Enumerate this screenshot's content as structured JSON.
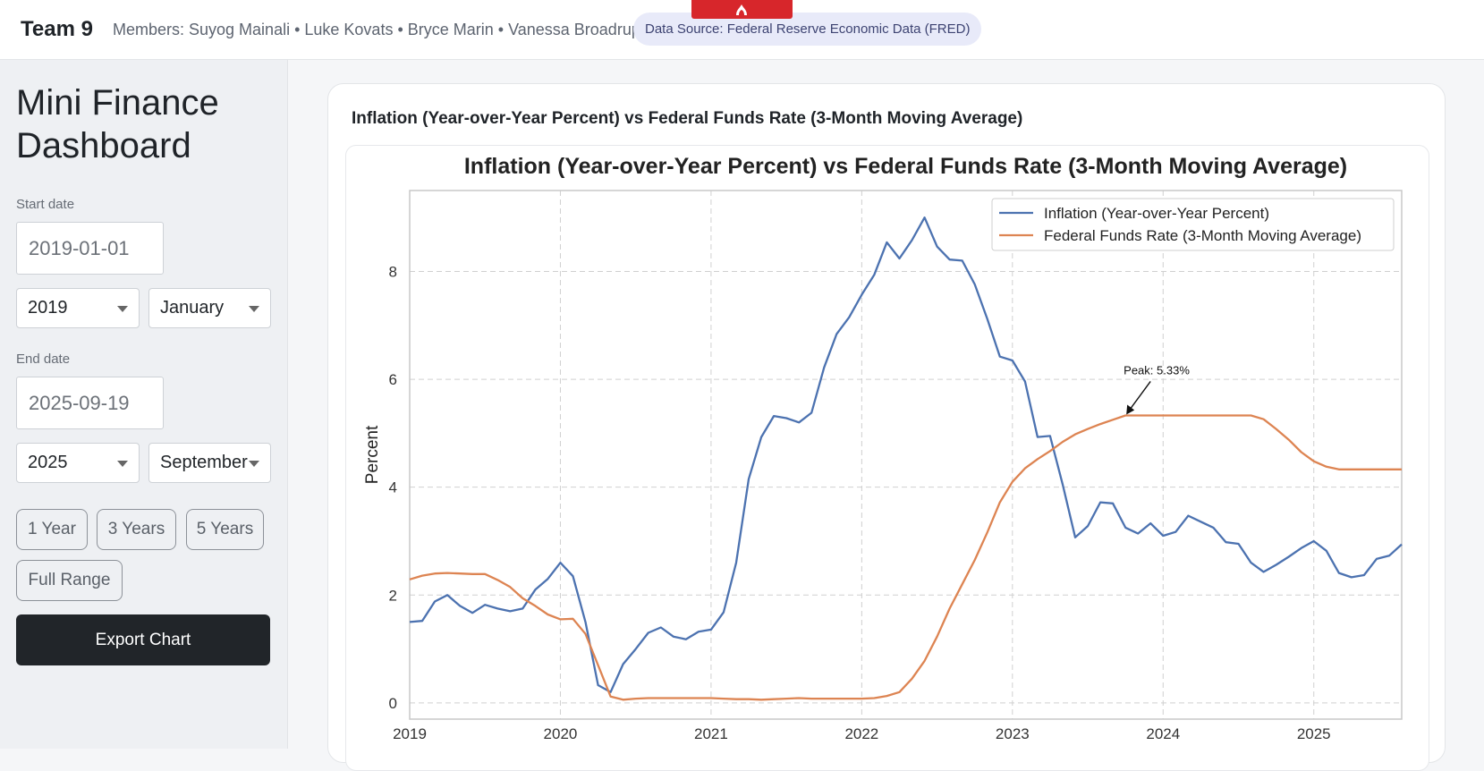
{
  "header": {
    "team": "Team 9",
    "members": "Members: Suyog Mainali • Luke Kovats • Bryce Marin • Vanessa Broadrup",
    "source": "Data Source: Federal Reserve Economic Data (FRED)"
  },
  "sidebar": {
    "title_line1": "Mini Finance",
    "title_line2": "Dashboard",
    "start_label": "Start date",
    "start_value": "2019-01-01",
    "start_year": "2019",
    "start_month": "January",
    "end_label": "End date",
    "end_value": "2025-09-19",
    "end_year": "2025",
    "end_month": "September",
    "range_buttons": [
      "1 Year",
      "3 Years",
      "5 Years",
      "Full Range"
    ],
    "export_label": "Export Chart"
  },
  "card": {
    "title": "Inflation (Year-over-Year Percent) vs Federal Funds Rate (3-Month Moving Average)"
  },
  "colors": {
    "inflation": "#4c72b0",
    "fedfunds": "#dd8452",
    "export_bg": "#212529",
    "source_pill": "#e8eaf9"
  },
  "chart_data": {
    "type": "line",
    "title": "Inflation (Year-over-Year Percent) vs Federal Funds Rate (3-Month Moving Average)",
    "ylabel": "Percent",
    "xlabel": "",
    "x_ticks": [
      "2019",
      "2020",
      "2021",
      "2022",
      "2023",
      "2024",
      "2025"
    ],
    "y_ticks": [
      0,
      2,
      4,
      6,
      8
    ],
    "xlim": [
      "2019-01",
      "2025-08"
    ],
    "ylim": [
      -0.3,
      9.5
    ],
    "grid": true,
    "legend_position": "top-right",
    "annotation": {
      "text": "Peak: 5.33%",
      "x": "2023-10",
      "y": 5.33
    },
    "series": [
      {
        "name": "Inflation (Year-over-Year Percent)",
        "points": [
          [
            "2019-01",
            1.5
          ],
          [
            "2019-02",
            1.52
          ],
          [
            "2019-03",
            1.88
          ],
          [
            "2019-04",
            2.0
          ],
          [
            "2019-05",
            1.8
          ],
          [
            "2019-06",
            1.67
          ],
          [
            "2019-07",
            1.82
          ],
          [
            "2019-08",
            1.75
          ],
          [
            "2019-09",
            1.7
          ],
          [
            "2019-10",
            1.75
          ],
          [
            "2019-11",
            2.1
          ],
          [
            "2019-12",
            2.3
          ],
          [
            "2020-01",
            2.6
          ],
          [
            "2020-02",
            2.35
          ],
          [
            "2020-03",
            1.5
          ],
          [
            "2020-04",
            0.33
          ],
          [
            "2020-05",
            0.2
          ],
          [
            "2020-06",
            0.72
          ],
          [
            "2020-07",
            1.0
          ],
          [
            "2020-08",
            1.3
          ],
          [
            "2020-09",
            1.4
          ],
          [
            "2020-10",
            1.23
          ],
          [
            "2020-11",
            1.18
          ],
          [
            "2020-12",
            1.32
          ],
          [
            "2021-01",
            1.36
          ],
          [
            "2021-02",
            1.68
          ],
          [
            "2021-03",
            2.6
          ],
          [
            "2021-04",
            4.15
          ],
          [
            "2021-05",
            4.93
          ],
          [
            "2021-06",
            5.32
          ],
          [
            "2021-07",
            5.28
          ],
          [
            "2021-08",
            5.2
          ],
          [
            "2021-09",
            5.38
          ],
          [
            "2021-10",
            6.22
          ],
          [
            "2021-11",
            6.84
          ],
          [
            "2021-12",
            7.15
          ],
          [
            "2022-01",
            7.57
          ],
          [
            "2022-02",
            7.94
          ],
          [
            "2022-03",
            8.54
          ],
          [
            "2022-04",
            8.24
          ],
          [
            "2022-05",
            8.58
          ],
          [
            "2022-06",
            9.0
          ],
          [
            "2022-07",
            8.46
          ],
          [
            "2022-08",
            8.22
          ],
          [
            "2022-09",
            8.2
          ],
          [
            "2022-10",
            7.76
          ],
          [
            "2022-11",
            7.12
          ],
          [
            "2022-12",
            6.42
          ],
          [
            "2023-01",
            6.35
          ],
          [
            "2023-02",
            5.96
          ],
          [
            "2023-03",
            4.93
          ],
          [
            "2023-04",
            4.95
          ],
          [
            "2023-05",
            4.05
          ],
          [
            "2023-06",
            3.07
          ],
          [
            "2023-07",
            3.28
          ],
          [
            "2023-08",
            3.72
          ],
          [
            "2023-09",
            3.7
          ],
          [
            "2023-10",
            3.25
          ],
          [
            "2023-11",
            3.14
          ],
          [
            "2023-12",
            3.33
          ],
          [
            "2024-01",
            3.1
          ],
          [
            "2024-02",
            3.17
          ],
          [
            "2024-03",
            3.47
          ],
          [
            "2024-04",
            3.36
          ],
          [
            "2024-05",
            3.25
          ],
          [
            "2024-06",
            2.98
          ],
          [
            "2024-07",
            2.95
          ],
          [
            "2024-08",
            2.6
          ],
          [
            "2024-09",
            2.43
          ],
          [
            "2024-10",
            2.56
          ],
          [
            "2024-11",
            2.71
          ],
          [
            "2024-12",
            2.87
          ],
          [
            "2025-01",
            3.0
          ],
          [
            "2025-02",
            2.82
          ],
          [
            "2025-03",
            2.41
          ],
          [
            "2025-04",
            2.33
          ],
          [
            "2025-05",
            2.37
          ],
          [
            "2025-06",
            2.67
          ],
          [
            "2025-07",
            2.73
          ],
          [
            "2025-08",
            2.94
          ]
        ]
      },
      {
        "name": "Federal Funds Rate (3-Month Moving Average)",
        "points": [
          [
            "2019-01",
            2.29
          ],
          [
            "2019-02",
            2.36
          ],
          [
            "2019-03",
            2.4
          ],
          [
            "2019-04",
            2.41
          ],
          [
            "2019-05",
            2.4
          ],
          [
            "2019-06",
            2.39
          ],
          [
            "2019-07",
            2.39
          ],
          [
            "2019-08",
            2.28
          ],
          [
            "2019-09",
            2.15
          ],
          [
            "2019-10",
            1.94
          ],
          [
            "2019-11",
            1.8
          ],
          [
            "2019-12",
            1.64
          ],
          [
            "2020-01",
            1.55
          ],
          [
            "2020-02",
            1.56
          ],
          [
            "2020-03",
            1.28
          ],
          [
            "2020-04",
            0.7
          ],
          [
            "2020-05",
            0.12
          ],
          [
            "2020-06",
            0.06
          ],
          [
            "2020-07",
            0.08
          ],
          [
            "2020-08",
            0.09
          ],
          [
            "2020-09",
            0.09
          ],
          [
            "2020-10",
            0.09
          ],
          [
            "2020-11",
            0.09
          ],
          [
            "2020-12",
            0.09
          ],
          [
            "2021-01",
            0.09
          ],
          [
            "2021-02",
            0.08
          ],
          [
            "2021-03",
            0.07
          ],
          [
            "2021-04",
            0.07
          ],
          [
            "2021-05",
            0.06
          ],
          [
            "2021-06",
            0.07
          ],
          [
            "2021-07",
            0.08
          ],
          [
            "2021-08",
            0.09
          ],
          [
            "2021-09",
            0.08
          ],
          [
            "2021-10",
            0.08
          ],
          [
            "2021-11",
            0.08
          ],
          [
            "2021-12",
            0.08
          ],
          [
            "2022-01",
            0.08
          ],
          [
            "2022-02",
            0.09
          ],
          [
            "2022-03",
            0.13
          ],
          [
            "2022-04",
            0.2
          ],
          [
            "2022-05",
            0.45
          ],
          [
            "2022-06",
            0.78
          ],
          [
            "2022-07",
            1.23
          ],
          [
            "2022-08",
            1.75
          ],
          [
            "2022-09",
            2.2
          ],
          [
            "2022-10",
            2.65
          ],
          [
            "2022-11",
            3.16
          ],
          [
            "2022-12",
            3.72
          ],
          [
            "2023-01",
            4.1
          ],
          [
            "2023-02",
            4.35
          ],
          [
            "2023-03",
            4.52
          ],
          [
            "2023-04",
            4.67
          ],
          [
            "2023-05",
            4.84
          ],
          [
            "2023-06",
            4.98
          ],
          [
            "2023-07",
            5.08
          ],
          [
            "2023-08",
            5.17
          ],
          [
            "2023-09",
            5.25
          ],
          [
            "2023-10",
            5.33
          ],
          [
            "2023-11",
            5.33
          ],
          [
            "2023-12",
            5.33
          ],
          [
            "2024-01",
            5.33
          ],
          [
            "2024-02",
            5.33
          ],
          [
            "2024-03",
            5.33
          ],
          [
            "2024-04",
            5.33
          ],
          [
            "2024-05",
            5.33
          ],
          [
            "2024-06",
            5.33
          ],
          [
            "2024-07",
            5.33
          ],
          [
            "2024-08",
            5.33
          ],
          [
            "2024-09",
            5.26
          ],
          [
            "2024-10",
            5.08
          ],
          [
            "2024-11",
            4.88
          ],
          [
            "2024-12",
            4.65
          ],
          [
            "2025-01",
            4.48
          ],
          [
            "2025-02",
            4.38
          ],
          [
            "2025-03",
            4.33
          ],
          [
            "2025-04",
            4.33
          ],
          [
            "2025-05",
            4.33
          ],
          [
            "2025-06",
            4.33
          ],
          [
            "2025-07",
            4.33
          ],
          [
            "2025-08",
            4.33
          ]
        ]
      }
    ]
  }
}
